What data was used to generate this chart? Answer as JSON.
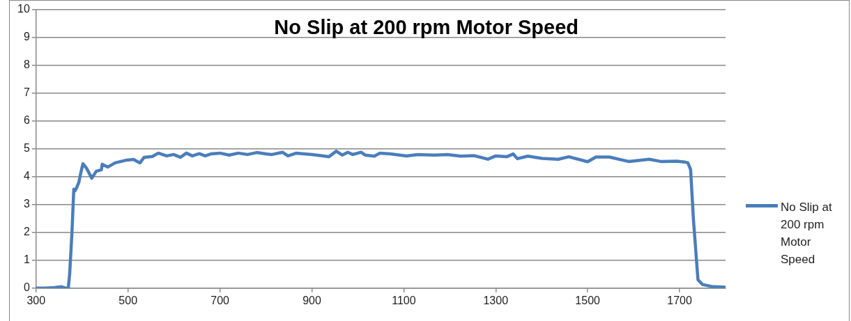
{
  "chart_data": {
    "type": "line",
    "title": "No Slip at 200 rpm Motor Speed",
    "series": [
      {
        "name": "No Slip at 200 rpm Motor Speed",
        "color": "#4a7ebb",
        "x": [
          300,
          320,
          340,
          355,
          365,
          370,
          373,
          378,
          382,
          385,
          388,
          393,
          398,
          402,
          410,
          421,
          431,
          442,
          444,
          456,
          472,
          497,
          512,
          526,
          535,
          553,
          566,
          584,
          599,
          614,
          627,
          640,
          655,
          668,
          680,
          700,
          720,
          740,
          760,
          780,
          800,
          813,
          836,
          848,
          866,
          901,
          937,
          953,
          966,
          978,
          989,
          1007,
          1016,
          1036,
          1048,
          1071,
          1106,
          1130,
          1166,
          1195,
          1224,
          1253,
          1283,
          1300,
          1324,
          1338,
          1347,
          1370,
          1401,
          1436,
          1459,
          1500,
          1518,
          1547,
          1589,
          1634,
          1659,
          1694,
          1711,
          1718,
          1724,
          1730,
          1740,
          1750,
          1770,
          1800
        ],
        "values": [
          0,
          0,
          0.02,
          0.05,
          0,
          0,
          0.5,
          2,
          3.55,
          3.5,
          3.6,
          3.8,
          4.2,
          4.47,
          4.3,
          3.95,
          4.2,
          4.25,
          4.45,
          4.35,
          4.5,
          4.6,
          4.62,
          4.5,
          4.7,
          4.73,
          4.85,
          4.75,
          4.8,
          4.7,
          4.85,
          4.75,
          4.83,
          4.75,
          4.82,
          4.85,
          4.78,
          4.85,
          4.8,
          4.87,
          4.82,
          4.8,
          4.88,
          4.75,
          4.85,
          4.8,
          4.72,
          4.92,
          4.78,
          4.88,
          4.8,
          4.88,
          4.78,
          4.74,
          4.85,
          4.82,
          4.75,
          4.8,
          4.78,
          4.8,
          4.74,
          4.76,
          4.63,
          4.75,
          4.72,
          4.82,
          4.65,
          4.74,
          4.66,
          4.63,
          4.72,
          4.54,
          4.71,
          4.71,
          4.55,
          4.63,
          4.55,
          4.56,
          4.53,
          4.5,
          4.26,
          2.5,
          0.3,
          0.13,
          0.06,
          0.03
        ]
      }
    ],
    "xlim": [
      300,
      1800
    ],
    "xticks": [
      300,
      500,
      700,
      900,
      1100,
      1300,
      1500,
      1700
    ],
    "ylim": [
      0,
      10
    ],
    "yticks": [
      0,
      1,
      2,
      3,
      4,
      5,
      6,
      7,
      8,
      9,
      10
    ],
    "grid": "y",
    "legend": "right",
    "marker": "none",
    "line_style": "solid"
  }
}
